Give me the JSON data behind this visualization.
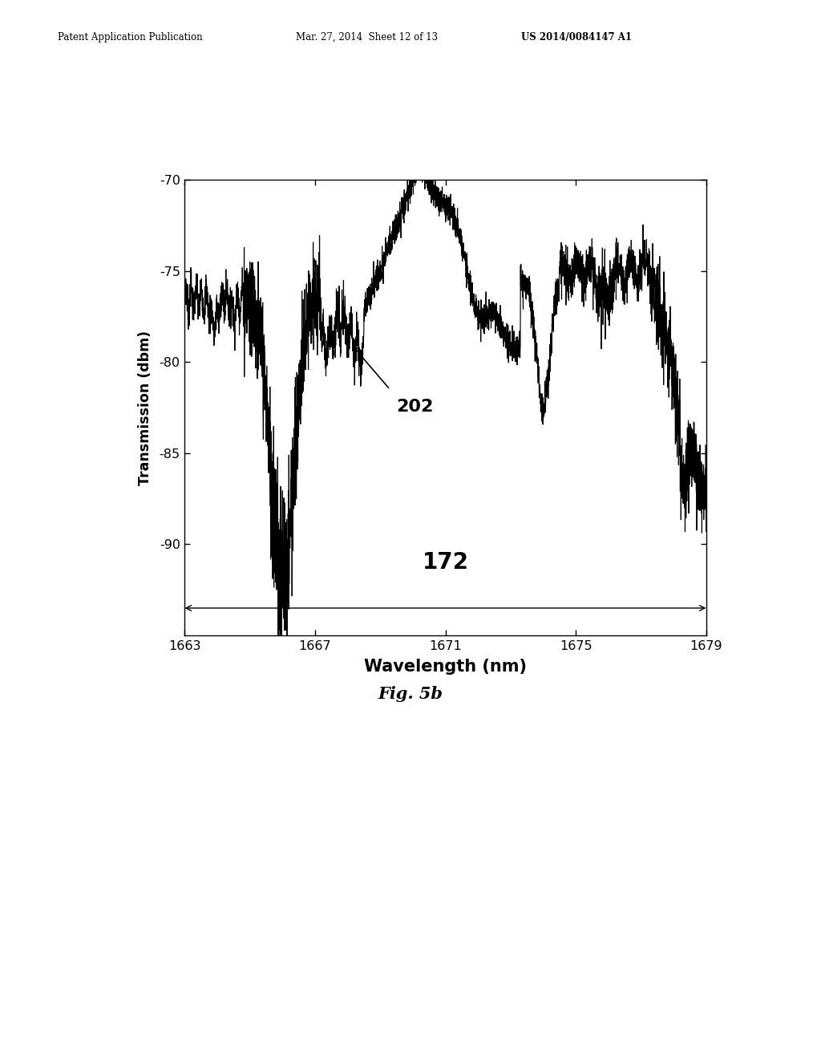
{
  "header_left": "Patent Application Publication",
  "header_mid": "Mar. 27, 2014  Sheet 12 of 13",
  "header_right": "US 2014/0084147 A1",
  "xlabel": "Wavelength (nm)",
  "ylabel": "Transmission (dbm)",
  "xlim": [
    1663,
    1679
  ],
  "ylim": [
    -95,
    -70
  ],
  "xticks": [
    1663,
    1667,
    1671,
    1675,
    1679
  ],
  "yticks": [
    -90,
    -85,
    -80,
    -75,
    -70
  ],
  "label_202": "202",
  "label_172": "172",
  "fig_label": "Fig. 5b",
  "bg_color": "#ffffff",
  "line_color": "#000000",
  "plot_bg": "#ffffff"
}
